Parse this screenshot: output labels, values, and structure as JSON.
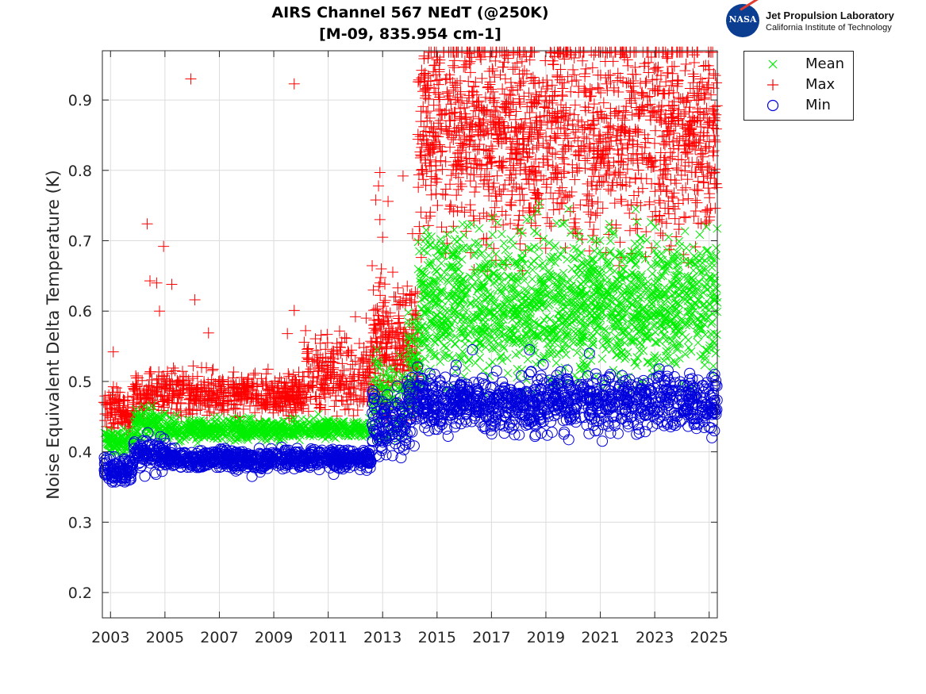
{
  "title": {
    "line1": "AIRS Channel 567 NEdT (@250K)",
    "line2": "[M-09, 835.954 cm-1]"
  },
  "logo": {
    "seal_text": "NASA",
    "org": "Jet Propulsion Laboratory",
    "sub": "California Institute of Technology"
  },
  "colors": {
    "mean": "#00ee00",
    "max": "#ff0000",
    "min": "#0000dd",
    "grid": "#dcdcdc",
    "axis": "#262626"
  },
  "chart_data": {
    "type": "scatter",
    "title": "AIRS Channel 567 NEdT (@250K) [M-09, 835.954 cm-1]",
    "xlabel": "",
    "ylabel": "Noise Equivalent Delta Temperature (K)",
    "xlim": [
      2002.7,
      2025.3
    ],
    "ylim": [
      0.164,
      0.97
    ],
    "grid": true,
    "xticks": [
      2003,
      2005,
      2007,
      2009,
      2011,
      2013,
      2015,
      2017,
      2019,
      2021,
      2023,
      2025
    ],
    "xtick_labels": [
      "2003",
      "2005",
      "2007",
      "2009",
      "2011",
      "2013",
      "2015",
      "2017",
      "2019",
      "2021",
      "2023",
      "2025"
    ],
    "yticks": [
      0.2,
      0.3,
      0.4,
      0.5,
      0.6,
      0.7,
      0.8,
      0.9
    ],
    "ytick_labels": [
      "0.2",
      "0.3",
      "0.4",
      "0.5",
      "0.6",
      "0.7",
      "0.8",
      "0.9"
    ],
    "legend": {
      "location": "outside-top-right",
      "entries": [
        "Mean",
        "Max",
        "Min"
      ]
    },
    "series": [
      {
        "name": "Mean",
        "marker": "x",
        "segments": [
          {
            "x": [
              2002.75,
              2003.85
            ],
            "center": 0.415,
            "spread": 0.008
          },
          {
            "x": [
              2003.85,
              2005.0
            ],
            "center": 0.44,
            "spread": 0.012
          },
          {
            "x": [
              2005.0,
              2012.6
            ],
            "center": 0.432,
            "spread": 0.007
          },
          {
            "x": [
              2012.6,
              2013.9
            ],
            "center": 0.475,
            "spread": 0.03
          },
          {
            "x": [
              2013.9,
              2014.3
            ],
            "center": 0.52,
            "spread": 0.04
          },
          {
            "x": [
              2014.3,
              2025.3
            ],
            "center": 0.61,
            "spread": 0.05
          }
        ],
        "outliers": [
          [
            2008.2,
            0.447
          ],
          [
            2018.3,
            0.73
          ],
          [
            2019.4,
            0.725
          ],
          [
            2022.3,
            0.745
          ],
          [
            2024.9,
            0.72
          ],
          [
            2014.6,
            0.715
          ]
        ]
      },
      {
        "name": "Max",
        "marker": "+",
        "segments": [
          {
            "x": [
              2002.75,
              2003.85
            ],
            "center": 0.458,
            "spread": 0.015
          },
          {
            "x": [
              2003.85,
              2010.1
            ],
            "center": 0.482,
            "spread": 0.015
          },
          {
            "x": [
              2010.1,
              2012.6
            ],
            "center": 0.51,
            "spread": 0.025
          },
          {
            "x": [
              2012.6,
              2014.3
            ],
            "center": 0.55,
            "spread": 0.05
          },
          {
            "x": [
              2014.3,
              2025.3
            ],
            "center": 0.855,
            "spread": 0.075
          }
        ],
        "outliers": [
          [
            2005.95,
            0.93
          ],
          [
            2009.75,
            0.923
          ],
          [
            2004.35,
            0.724
          ],
          [
            2004.95,
            0.692
          ],
          [
            2005.25,
            0.638
          ],
          [
            2006.1,
            0.616
          ],
          [
            2004.45,
            0.643
          ],
          [
            2004.7,
            0.64
          ],
          [
            2004.8,
            0.6
          ],
          [
            2006.6,
            0.569
          ],
          [
            2009.75,
            0.601
          ],
          [
            2009.5,
            0.568
          ],
          [
            2003.1,
            0.542
          ],
          [
            2012.9,
            0.797
          ],
          [
            2012.85,
            0.778
          ],
          [
            2012.75,
            0.758
          ],
          [
            2013.2,
            0.756
          ],
          [
            2012.9,
            0.73
          ],
          [
            2013.0,
            0.705
          ],
          [
            2012.95,
            0.66
          ],
          [
            2012.9,
            0.64
          ],
          [
            2012.4,
            0.59
          ],
          [
            2012.0,
            0.592
          ],
          [
            2013.75,
            0.792
          ],
          [
            2014.1,
            0.71
          ],
          [
            2013.1,
            0.615
          ]
        ]
      },
      {
        "name": "Min",
        "marker": "o",
        "segments": [
          {
            "x": [
              2002.75,
              2003.85
            ],
            "center": 0.375,
            "spread": 0.009
          },
          {
            "x": [
              2003.85,
              2005.0
            ],
            "center": 0.397,
            "spread": 0.011
          },
          {
            "x": [
              2005.0,
              2012.6
            ],
            "center": 0.39,
            "spread": 0.007
          },
          {
            "x": [
              2012.6,
              2013.9
            ],
            "center": 0.44,
            "spread": 0.025
          },
          {
            "x": [
              2013.9,
              2014.3
            ],
            "center": 0.465,
            "spread": 0.025
          },
          {
            "x": [
              2014.3,
              2025.3
            ],
            "center": 0.47,
            "spread": 0.02
          }
        ],
        "outliers": [
          [
            2008.2,
            0.365
          ],
          [
            2018.4,
            0.545
          ],
          [
            2018.6,
            0.422
          ],
          [
            2020.6,
            0.54
          ],
          [
            2025.1,
            0.42
          ],
          [
            2016.3,
            0.545
          ],
          [
            2011.2,
            0.368
          ]
        ]
      }
    ]
  }
}
